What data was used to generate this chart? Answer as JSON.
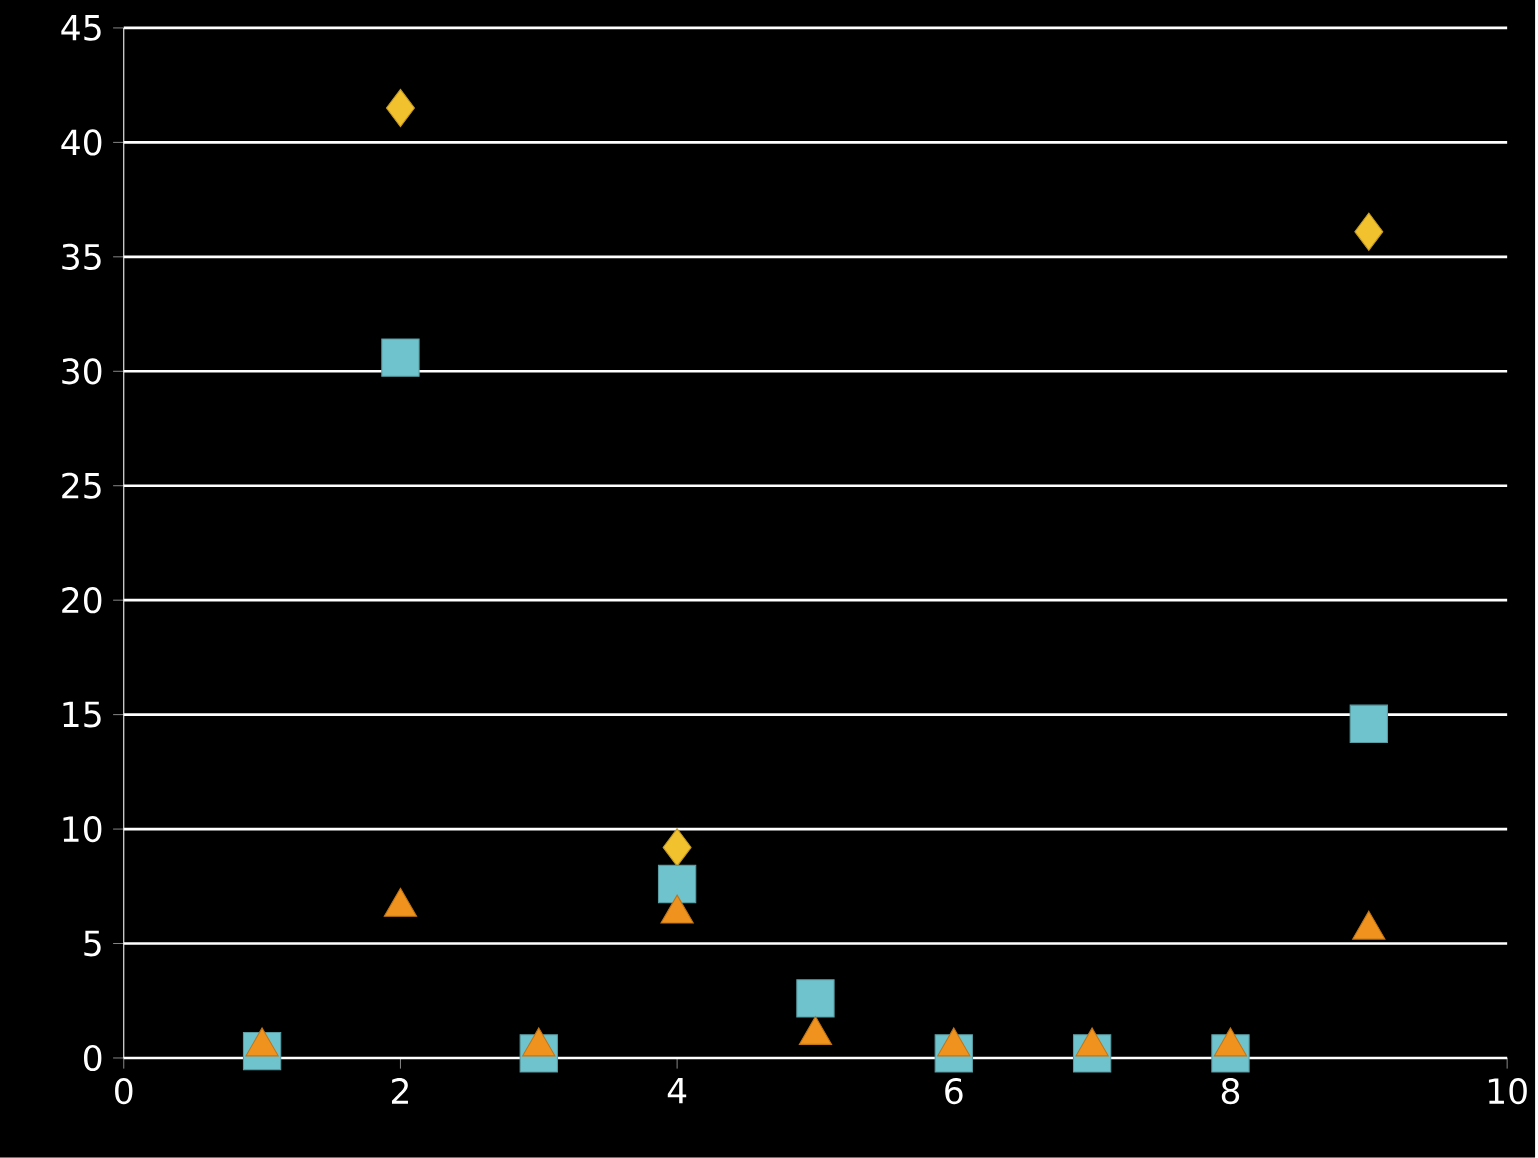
{
  "chart_data": {
    "type": "scatter",
    "xlim": [
      0,
      10
    ],
    "ylim": [
      0,
      45
    ],
    "xticks": [
      0,
      2,
      4,
      6,
      8,
      10
    ],
    "yticks": [
      0,
      5,
      10,
      15,
      20,
      25,
      30,
      35,
      40,
      45
    ],
    "grid": "y",
    "series": [
      {
        "color": "#f2c12e",
        "marker": "diamond",
        "x": [
          2,
          4,
          9
        ],
        "values": [
          41.5,
          9.2,
          36.1
        ]
      },
      {
        "color": "#6fc3cc",
        "marker": "square",
        "x": [
          1,
          2,
          3,
          4,
          5,
          6,
          7,
          8,
          9
        ],
        "values": [
          0.3,
          30.6,
          0.2,
          7.6,
          2.6,
          0.2,
          0.2,
          0.2,
          14.6
        ]
      },
      {
        "color": "#f0921e",
        "marker": "triangle",
        "x": [
          1,
          2,
          3,
          4,
          5,
          6,
          7,
          8,
          9
        ],
        "values": [
          0.5,
          6.6,
          0.5,
          6.3,
          1.0,
          0.5,
          0.5,
          0.5,
          5.6
        ]
      }
    ]
  }
}
